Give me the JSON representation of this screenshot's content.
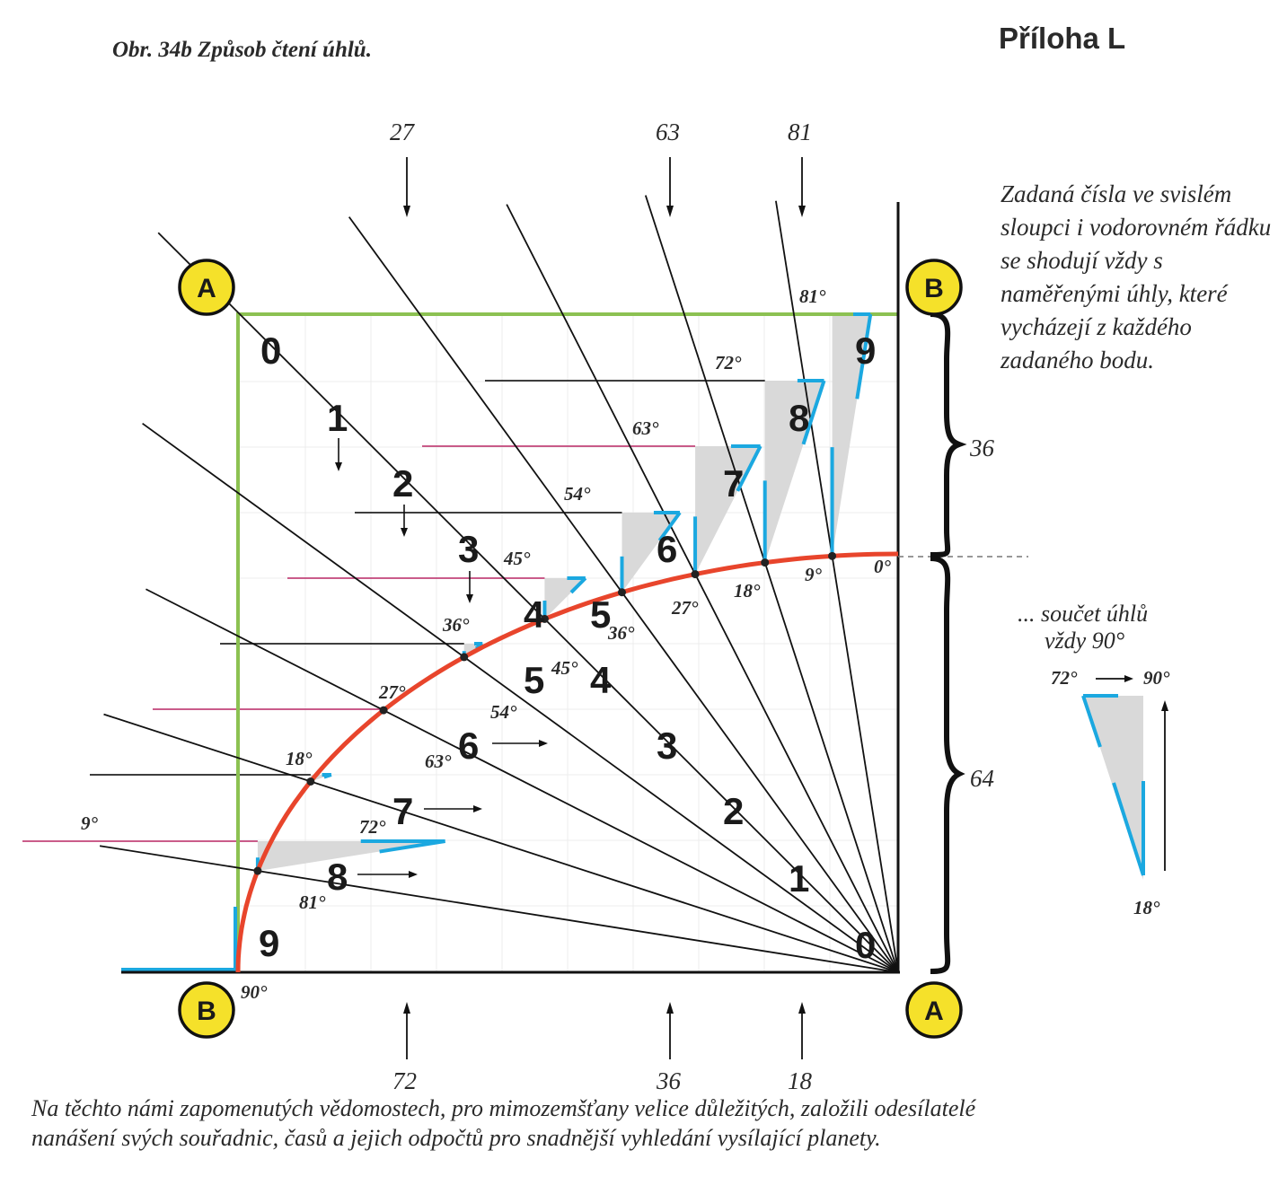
{
  "figure_title": "Obr. 34b Způsob čtení úhlů.",
  "appendix_label": "Příloha L",
  "side_note": "Zadaná čísla ve svislém sloupci i vodorovném řádku se shodují vždy s naměřenými úhly, které vycházejí z každého zadaného bodu.",
  "caption": "Na těchto námi zapomenutých vědomostech, pro mimozemšťany velice důležitých, založili odesílatelé nanášení svých souřadnic, časů a jejich odpočtů pro snadnější vyhledání vysílající planety.",
  "corner_markers": [
    "A",
    "B",
    "B",
    "A"
  ],
  "top_numbers": [
    "27",
    "63",
    "81"
  ],
  "bottom_numbers": [
    "72",
    "36",
    "18"
  ],
  "brace_labels": [
    "36",
    "64"
  ],
  "ray_numbers_top": [
    "0",
    "1",
    "2",
    "3",
    "4",
    "5",
    "6",
    "7",
    "8",
    "9"
  ],
  "ray_numbers_left": [
    "5",
    "6",
    "7",
    "8",
    "9"
  ],
  "ray_numbers_lower": [
    "4",
    "3",
    "2",
    "1",
    "0"
  ],
  "arc_angles": [
    "9°",
    "18°",
    "27°",
    "36°",
    "45°",
    "54°",
    "63°",
    "72°",
    "81°",
    "0°",
    "90°"
  ],
  "triangle_angles": [
    "81°",
    "72°",
    "63°",
    "54°",
    "45°",
    "36°",
    "27°",
    "18°",
    "9°"
  ],
  "sum_note": {
    "line1": "... součet úhlů",
    "line2": "vždy 90°",
    "from": "72°",
    "to": "90°",
    "bottom": "18°"
  },
  "colors": {
    "arc": "#e8452c",
    "frame": "#8cc152",
    "highlight": "#1ba8e0",
    "magenta": "#c2457a",
    "marker_fill": "#f5e12a",
    "shade": "#d9d9d9"
  }
}
